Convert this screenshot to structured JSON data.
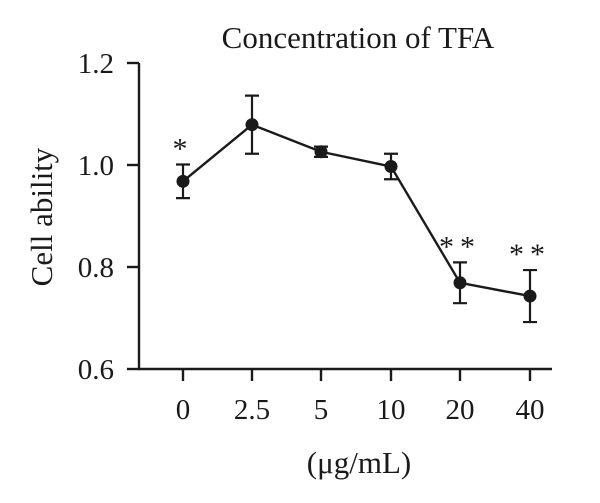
{
  "chart_data": {
    "type": "line",
    "title": "Concentration of TFA",
    "xlabel": "(μg/mL)",
    "ylabel": "Cell ability",
    "categories": [
      "0",
      "2.5",
      "5",
      "10",
      "20",
      "40"
    ],
    "ylim": [
      0.6,
      1.2
    ],
    "yticks": [
      "0.6",
      "0.8",
      "1.0",
      "1.2"
    ],
    "grid": false,
    "series": [
      {
        "values": [
          0.968,
          1.079,
          1.026,
          0.997,
          0.769,
          0.743
        ],
        "errors": [
          0.033,
          0.057,
          0.01,
          0.025,
          0.04,
          0.051
        ],
        "marker_color": "#1a1a1a"
      }
    ],
    "annotations": [
      "*",
      "",
      "",
      "",
      "**",
      "**"
    ]
  }
}
